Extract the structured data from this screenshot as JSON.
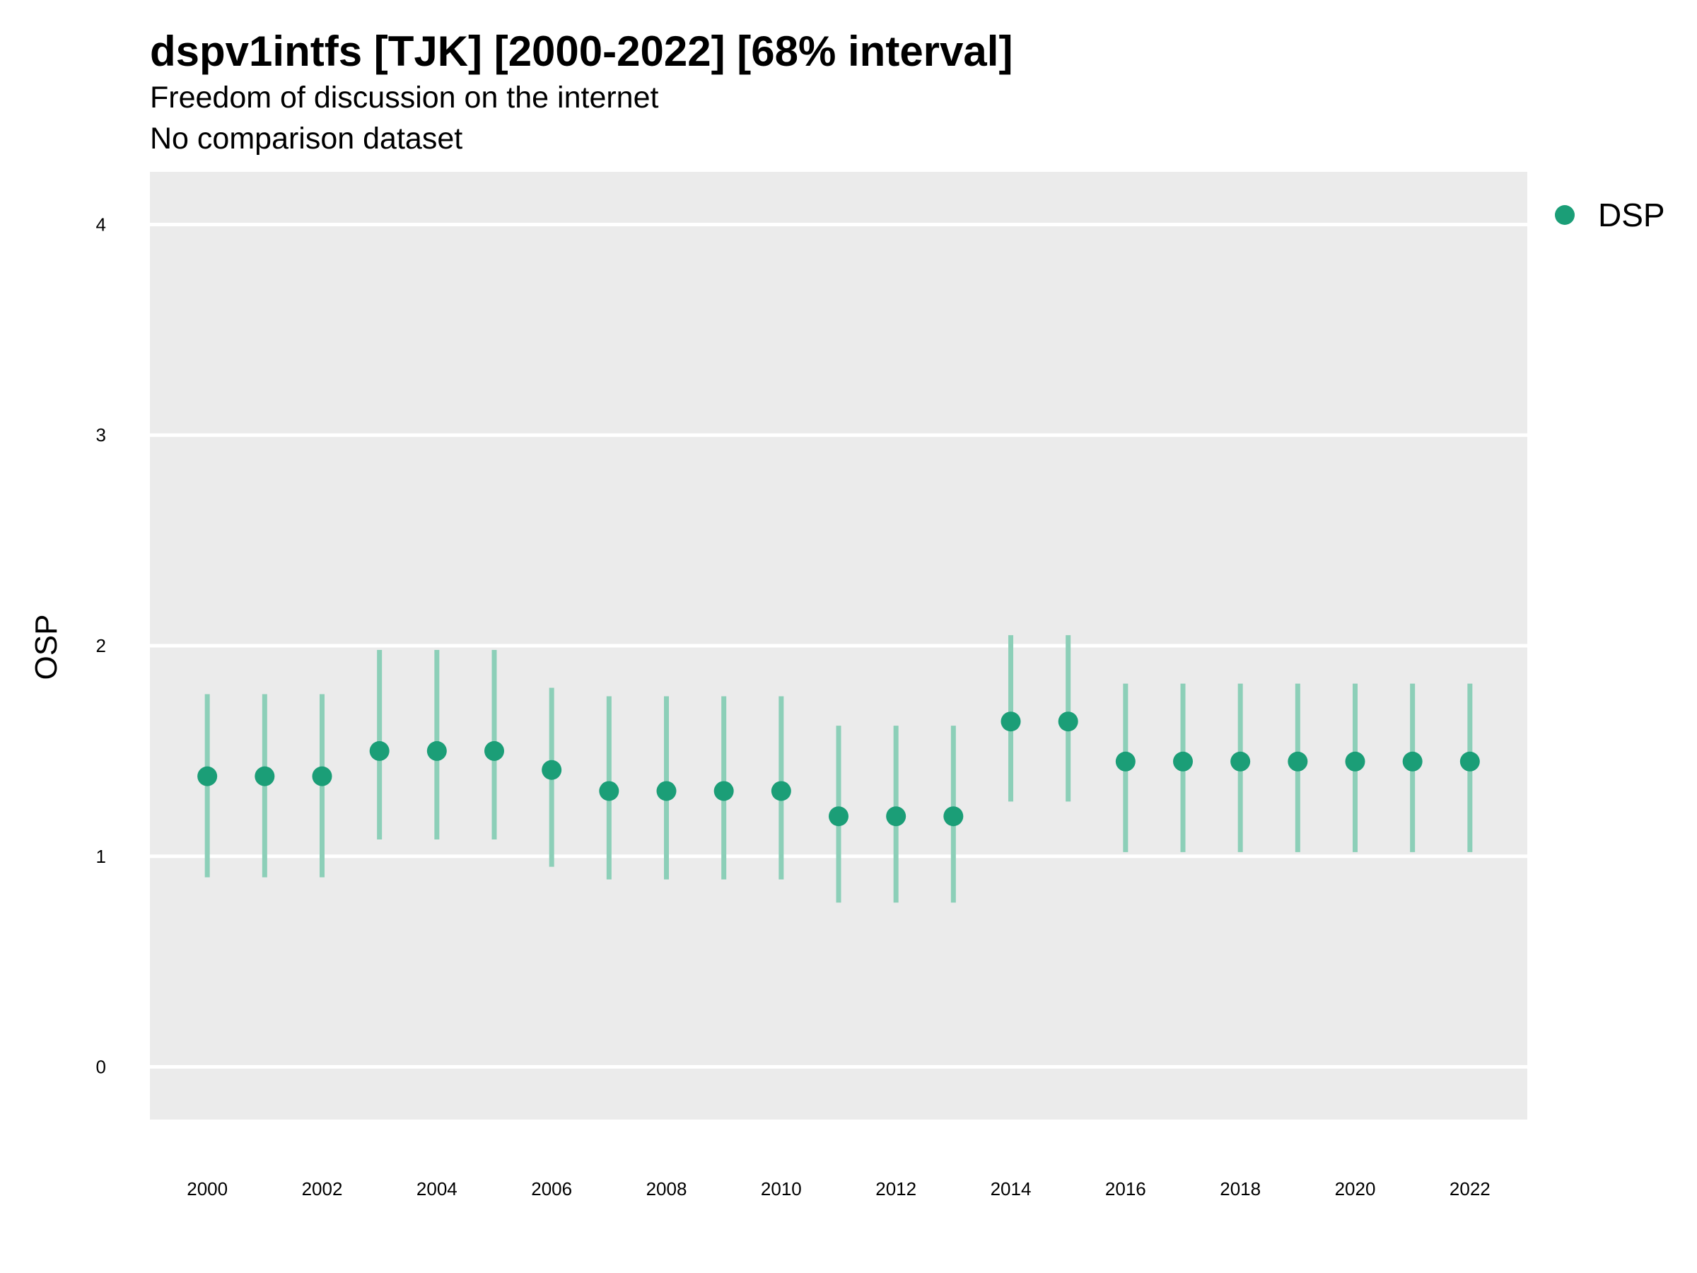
{
  "chart_data": {
    "type": "scatter",
    "title": "dspv1intfs [TJK] [2000-2022] [68% interval]",
    "subtitles": [
      "Freedom of discussion on the internet",
      "No comparison dataset"
    ],
    "xlabel": "",
    "ylabel": "OSP",
    "ylim": [
      -0.25,
      4.25
    ],
    "xlim": [
      1999,
      2023
    ],
    "yticks": [
      "0",
      "1",
      "2",
      "3",
      "4"
    ],
    "xticks": [
      "2000",
      "2002",
      "2004",
      "2006",
      "2008",
      "2010",
      "2012",
      "2014",
      "2016",
      "2018",
      "2020",
      "2022"
    ],
    "grid": true,
    "legend_position": "right",
    "series": [
      {
        "name": "DSP",
        "color": "#1b9e77",
        "points": [
          {
            "x": 2000,
            "y": 1.38,
            "low": 0.9,
            "high": 1.77
          },
          {
            "x": 2001,
            "y": 1.38,
            "low": 0.9,
            "high": 1.77
          },
          {
            "x": 2002,
            "y": 1.38,
            "low": 0.9,
            "high": 1.77
          },
          {
            "x": 2003,
            "y": 1.5,
            "low": 1.08,
            "high": 1.98
          },
          {
            "x": 2004,
            "y": 1.5,
            "low": 1.08,
            "high": 1.98
          },
          {
            "x": 2005,
            "y": 1.5,
            "low": 1.08,
            "high": 1.98
          },
          {
            "x": 2006,
            "y": 1.41,
            "low": 0.95,
            "high": 1.8
          },
          {
            "x": 2007,
            "y": 1.31,
            "low": 0.89,
            "high": 1.76
          },
          {
            "x": 2008,
            "y": 1.31,
            "low": 0.89,
            "high": 1.76
          },
          {
            "x": 2009,
            "y": 1.31,
            "low": 0.89,
            "high": 1.76
          },
          {
            "x": 2010,
            "y": 1.31,
            "low": 0.89,
            "high": 1.76
          },
          {
            "x": 2011,
            "y": 1.19,
            "low": 0.78,
            "high": 1.62
          },
          {
            "x": 2012,
            "y": 1.19,
            "low": 0.78,
            "high": 1.62
          },
          {
            "x": 2013,
            "y": 1.19,
            "low": 0.78,
            "high": 1.62
          },
          {
            "x": 2014,
            "y": 1.64,
            "low": 1.26,
            "high": 2.05
          },
          {
            "x": 2015,
            "y": 1.64,
            "low": 1.26,
            "high": 2.05
          },
          {
            "x": 2016,
            "y": 1.45,
            "low": 1.02,
            "high": 1.82
          },
          {
            "x": 2017,
            "y": 1.45,
            "low": 1.02,
            "high": 1.82
          },
          {
            "x": 2018,
            "y": 1.45,
            "low": 1.02,
            "high": 1.82
          },
          {
            "x": 2019,
            "y": 1.45,
            "low": 1.02,
            "high": 1.82
          },
          {
            "x": 2020,
            "y": 1.45,
            "low": 1.02,
            "high": 1.82
          },
          {
            "x": 2021,
            "y": 1.45,
            "low": 1.02,
            "high": 1.82
          },
          {
            "x": 2022,
            "y": 1.45,
            "low": 1.02,
            "high": 1.82
          }
        ]
      }
    ]
  },
  "colors": {
    "panel_background": "#ebebeb",
    "grid": "#ffffff",
    "point": "#1b9e77",
    "interval": "#8ccfb8"
  }
}
